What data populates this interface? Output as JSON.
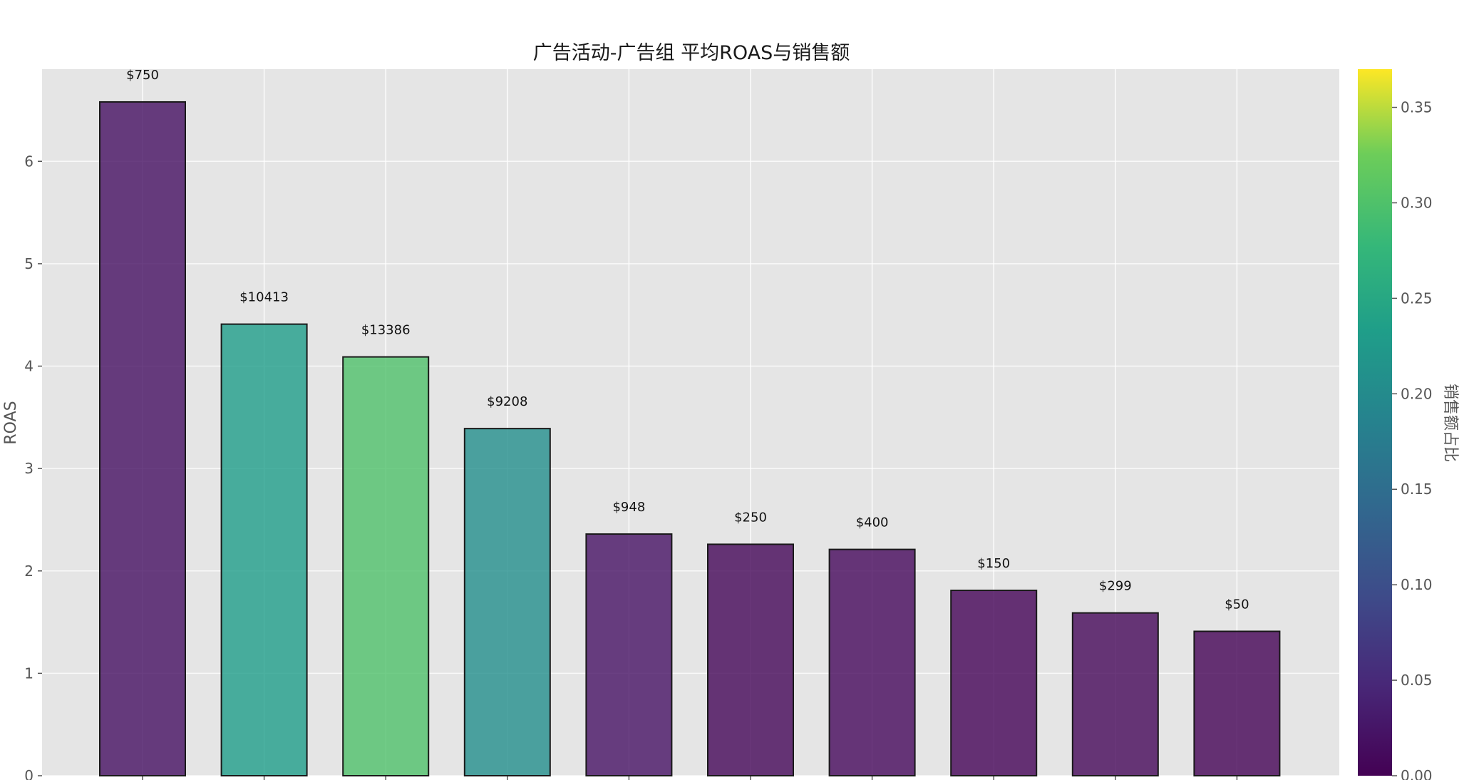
{
  "chart_data": {
    "type": "bar",
    "title": "广告活动-广告组 平均ROAS与销售额",
    "xlabel": "",
    "ylabel": "ROAS",
    "ylim": [
      0,
      6.9
    ],
    "yticks": [
      0,
      1,
      2,
      3,
      4,
      5,
      6
    ],
    "grid": true,
    "categories": [
      "",
      "",
      "",
      "",
      "",
      "",
      "",
      "",
      "",
      ""
    ],
    "values": [
      6.58,
      4.41,
      4.09,
      3.39,
      2.36,
      2.26,
      2.21,
      1.81,
      1.59,
      1.41
    ],
    "bar_labels": [
      "$750",
      "$10413",
      "$13386",
      "$9208",
      "$948",
      "$250",
      "$400",
      "$150",
      "$299",
      "$50"
    ],
    "sales_share": [
      0.017,
      0.233,
      0.3,
      0.206,
      0.021,
      0.006,
      0.009,
      0.003,
      0.007,
      0.001
    ],
    "colorbar": {
      "label": "销售额占比",
      "colormap": "viridis",
      "range": [
        0,
        0.37
      ],
      "ticks": [
        0.0,
        0.05,
        0.1,
        0.15,
        0.2,
        0.25,
        0.3,
        0.35
      ],
      "tick_labels": [
        "0.00",
        "0.05",
        "0.10",
        "0.15",
        "0.20",
        "0.25",
        "0.30",
        "0.35"
      ]
    },
    "colors": {
      "plot_background": "#e5e5e5",
      "grid": "#ffffff",
      "bar_edge": "#1a1a1a",
      "tick_text": "#555555",
      "title_text": "#1a1a1a"
    }
  }
}
